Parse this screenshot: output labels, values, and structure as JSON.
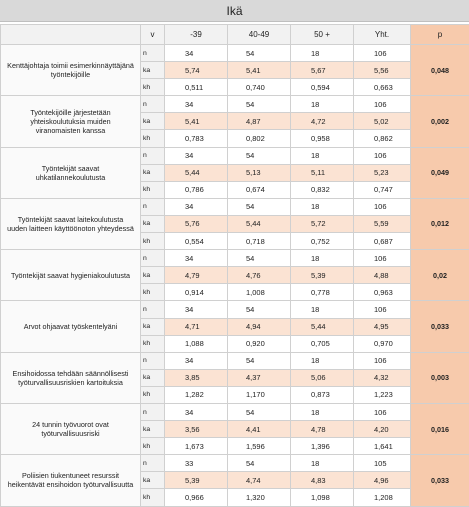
{
  "title": "Ikä",
  "headers": {
    "v": "v",
    "c39": "-39",
    "c4049": "40-49",
    "c50": "50 +",
    "yht": "Yht.",
    "p": "p"
  },
  "rows": [
    {
      "q": "Kenttäjohtaja toimii esimerkinnäyttäjänä työntekijöille",
      "p": "0,048",
      "n": [
        "34",
        "54",
        "18",
        "106"
      ],
      "ka": [
        "5,74",
        "5,41",
        "5,67",
        "5,56"
      ],
      "kh": [
        "0,511",
        "0,740",
        "0,594",
        "0,663"
      ]
    },
    {
      "q": "Työntekijöille järjestetään yhteiskoulutuksia muiden viranomaisten kanssa",
      "p": "0,002",
      "n": [
        "34",
        "54",
        "18",
        "106"
      ],
      "ka": [
        "5,41",
        "4,87",
        "4,72",
        "5,02"
      ],
      "kh": [
        "0,783",
        "0,802",
        "0,958",
        "0,862"
      ]
    },
    {
      "q": "Työntekijät saavat uhkatilannekoulutusta",
      "p": "0,049",
      "n": [
        "34",
        "54",
        "18",
        "106"
      ],
      "ka": [
        "5,44",
        "5,13",
        "5,11",
        "5,23"
      ],
      "kh": [
        "0,786",
        "0,674",
        "0,832",
        "0,747"
      ]
    },
    {
      "q": "Työntekijät saavat laitekoulutusta uuden laitteen käyttöönoton yhteydessä",
      "p": "0,012",
      "n": [
        "34",
        "54",
        "18",
        "106"
      ],
      "ka": [
        "5,76",
        "5,44",
        "5,72",
        "5,59"
      ],
      "kh": [
        "0,554",
        "0,718",
        "0,752",
        "0,687"
      ]
    },
    {
      "q": "Työntekijät saavat hygieniakoulutusta",
      "p": "0,02",
      "n": [
        "34",
        "54",
        "18",
        "106"
      ],
      "ka": [
        "4,79",
        "4,76",
        "5,39",
        "4,88"
      ],
      "kh": [
        "0,914",
        "1,008",
        "0,778",
        "0,963"
      ]
    },
    {
      "q": "Arvot ohjaavat työskentelyäni",
      "p": "0,033",
      "n": [
        "34",
        "54",
        "18",
        "106"
      ],
      "ka": [
        "4,71",
        "4,94",
        "5,44",
        "4,95"
      ],
      "kh": [
        "1,088",
        "0,920",
        "0,705",
        "0,970"
      ]
    },
    {
      "q": "Ensihoidossa tehdään säännöllisesti työturvallisuusriskien kartoituksia",
      "p": "0,003",
      "n": [
        "34",
        "54",
        "18",
        "106"
      ],
      "ka": [
        "3,85",
        "4,37",
        "5,06",
        "4,32"
      ],
      "kh": [
        "1,282",
        "1,170",
        "0,873",
        "1,223"
      ]
    },
    {
      "q": "24 tunnin työvuorot ovat työturvallisuusriski",
      "p": "0,016",
      "n": [
        "34",
        "54",
        "18",
        "106"
      ],
      "ka": [
        "3,56",
        "4,41",
        "4,78",
        "4,20"
      ],
      "kh": [
        "1,673",
        "1,596",
        "1,396",
        "1,641"
      ]
    },
    {
      "q": "Poliisien tiukentuneet resurssit heikentävät ensihoidon työturvallisuutta",
      "p": "0,033",
      "n": [
        "33",
        "54",
        "18",
        "105"
      ],
      "ka": [
        "5,39",
        "4,74",
        "4,83",
        "4,96"
      ],
      "kh": [
        "0,966",
        "1,320",
        "1,098",
        "1,208"
      ]
    }
  ],
  "labels": {
    "n": "n",
    "ka": "ka",
    "kh": "kh"
  }
}
